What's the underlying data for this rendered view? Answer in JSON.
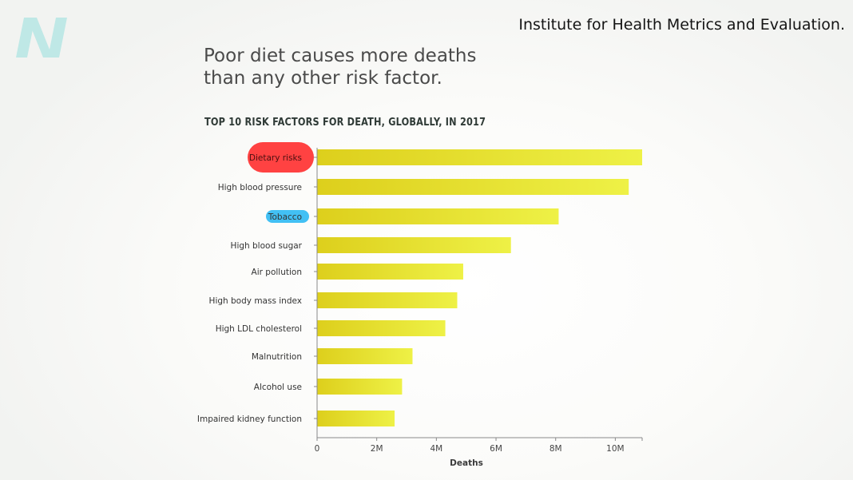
{
  "header": {
    "source": "Institute for Health Metrics and Evaluation.",
    "headline_line1": "Poor diet causes more deaths",
    "headline_line2": "than any other risk factor."
  },
  "colors": {
    "bar_start": "#ddcf1c",
    "bar_end": "#eef146",
    "highlight_dietary": "#ff4242",
    "highlight_tobacco": "#42c0f4",
    "axis": "#8a8a8a",
    "logo": "#bfe8e6"
  },
  "chart_data": {
    "type": "bar",
    "orientation": "horizontal",
    "title": "TOP 10 RISK FACTORS FOR DEATH, GLOBALLY, IN 2017",
    "categories": [
      "Dietary risks",
      "High blood pressure",
      "Tobacco",
      "High blood sugar",
      "Air pollution",
      "High body mass index",
      "High LDL cholesterol",
      "Malnutrition",
      "Alcohol use",
      "Impaired kidney function"
    ],
    "values": [
      10.9,
      10.45,
      8.1,
      6.5,
      4.9,
      4.7,
      4.3,
      3.2,
      2.85,
      2.6
    ],
    "unit": "M",
    "highlights": {
      "Dietary risks": "red",
      "Tobacco": "blue"
    },
    "xlabel": "Deaths",
    "ylabel": "",
    "xlim": [
      0,
      10.9
    ],
    "xticks": [
      0,
      2,
      4,
      6,
      8,
      10
    ],
    "xtick_labels": [
      "0",
      "2M",
      "4M",
      "6M",
      "8M",
      "10M"
    ],
    "grid": false,
    "legend": "none"
  }
}
